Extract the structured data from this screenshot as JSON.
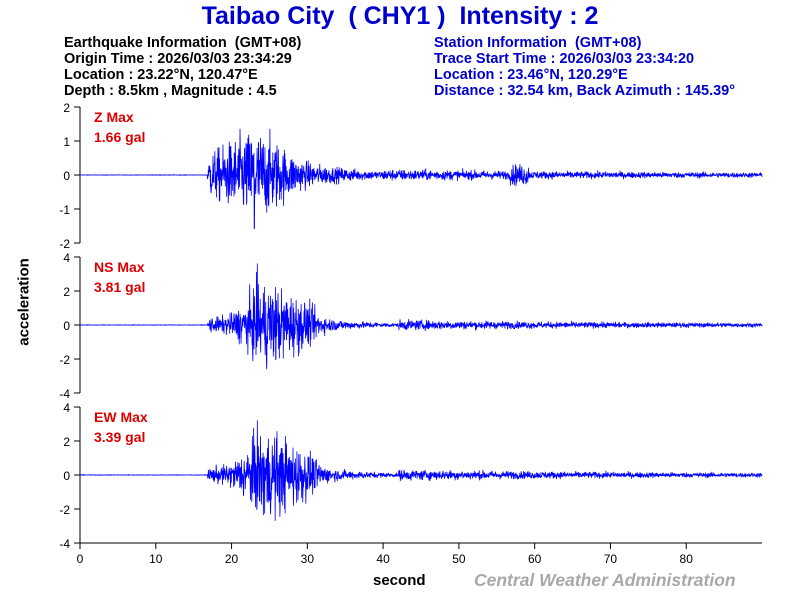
{
  "title": "Taibao City  ( CHY1 )  Intensity : 2",
  "earthquake_info": {
    "heading": "Earthquake Information  (GMT+08)",
    "origin_time": "Origin Time : 2026/03/03 23:34:29",
    "location": "Location : 23.22°N, 120.47°E",
    "depth_magnitude": "Depth : 8.5km , Magnitude : 4.5"
  },
  "station_info": {
    "heading": "Station Information  (GMT+08)",
    "trace_start": "Trace Start Time : 2026/03/03 23:34:20",
    "location": "Location : 23.46°N, 120.29°E",
    "distance": "Distance : 32.54 km, Back Azimuth : 145.39°"
  },
  "footer": {
    "credit": "Central Weather Administration"
  },
  "colors": {
    "title": "#0000cc",
    "trace": "#0000ff",
    "label_red": "#dd0000",
    "credit": "#a8a8a8"
  },
  "chart_data": {
    "type": "line",
    "xlabel": "second",
    "ylabel": "acceleration",
    "xlim": [
      0,
      90
    ],
    "x_ticks": [
      0,
      10,
      20,
      30,
      40,
      50,
      60,
      70,
      80
    ],
    "grid": false,
    "onset_s": 16.8,
    "panels": [
      {
        "component": "Z",
        "label": "Z Max",
        "max_value": "1.66 gal",
        "max_abs": 1.66,
        "peak_time_s": 23.0,
        "ylim": [
          -2,
          2
        ],
        "y_ticks": [
          2,
          1,
          0,
          -1,
          -2
        ]
      },
      {
        "component": "NS",
        "label": "NS Max",
        "max_value": "3.81 gal",
        "max_abs": 3.81,
        "peak_time_s": 23.4,
        "ylim": [
          -4,
          4
        ],
        "y_ticks": [
          4,
          2,
          0,
          -2,
          -4
        ]
      },
      {
        "component": "EW",
        "label": "EW Max",
        "max_value": "3.39 gal",
        "max_abs": 3.39,
        "peak_time_s": 23.4,
        "ylim": [
          -4,
          4
        ],
        "y_ticks": [
          4,
          2,
          0,
          -2,
          -4
        ]
      }
    ]
  }
}
